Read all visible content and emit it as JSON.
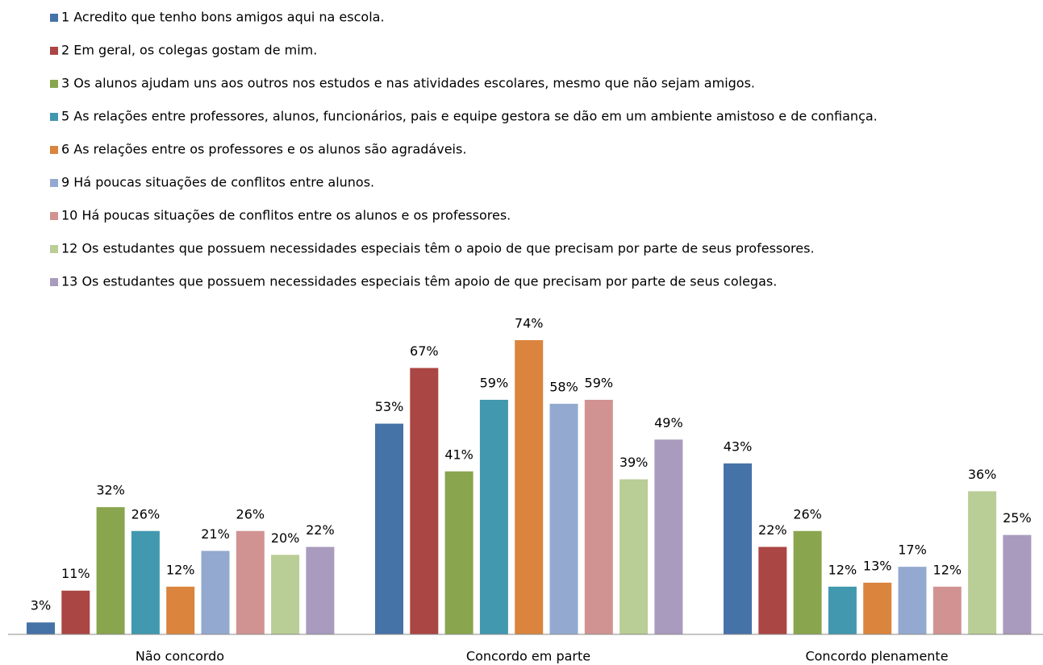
{
  "chart_data": {
    "type": "bar",
    "categories": [
      "Não concordo",
      "Concordo em parte",
      "Concordo plenamente"
    ],
    "series": [
      {
        "name": "1 Acredito que tenho bons amigos aqui na escola.",
        "color": "#4572a7",
        "values": [
          3,
          53,
          43
        ],
        "value_labels": [
          "3%",
          "53%",
          "43%"
        ]
      },
      {
        "name": "2 Em geral, os colegas gostam de mim.",
        "color": "#aa4643",
        "values": [
          11,
          67,
          22
        ],
        "value_labels": [
          "11%",
          "67%",
          "22%"
        ]
      },
      {
        "name": "3 Os alunos ajudam uns aos outros nos estudos e nas atividades escolares, mesmo que não sejam amigos.",
        "color": "#89a54e",
        "values": [
          32,
          41,
          26
        ],
        "value_labels": [
          "32%",
          "41%",
          "26%"
        ]
      },
      {
        "name": "5 As relações entre professores, alunos, funcionários, pais e equipe gestora se dão em um ambiente amistoso e de confiança.",
        "color": "#4198af",
        "values": [
          26,
          59,
          12
        ],
        "value_labels": [
          "26%",
          "59%",
          "12%"
        ]
      },
      {
        "name": "6 As relações entre os professores e os alunos são agradáveis.",
        "color": "#db843d",
        "values": [
          12,
          74,
          13
        ],
        "value_labels": [
          "12%",
          "74%",
          "13%"
        ]
      },
      {
        "name": "9 Há poucas situações de conflitos entre alunos.",
        "color": "#93a9cf",
        "values": [
          21,
          58,
          17
        ],
        "value_labels": [
          "21%",
          "58%",
          "17%"
        ]
      },
      {
        "name": "10 Há poucas situações de conflitos entre os alunos e os professores.",
        "color": "#d19392",
        "values": [
          26,
          59,
          12
        ],
        "value_labels": [
          "26%",
          "59%",
          "12%"
        ]
      },
      {
        "name": "12 Os estudantes que possuem necessidades especiais têm o apoio de que precisam por parte de seus professores.",
        "color": "#b9cd96",
        "values": [
          20,
          39,
          36
        ],
        "value_labels": [
          "20%",
          "39%",
          "36%"
        ]
      },
      {
        "name": "13 Os estudantes que possuem necessidades especiais têm apoio de que precisam por parte de seus colegas.",
        "color": "#a99bbd",
        "values": [
          22,
          49,
          25
        ],
        "value_labels": [
          "22%",
          "49%",
          "25%"
        ]
      }
    ]
  }
}
